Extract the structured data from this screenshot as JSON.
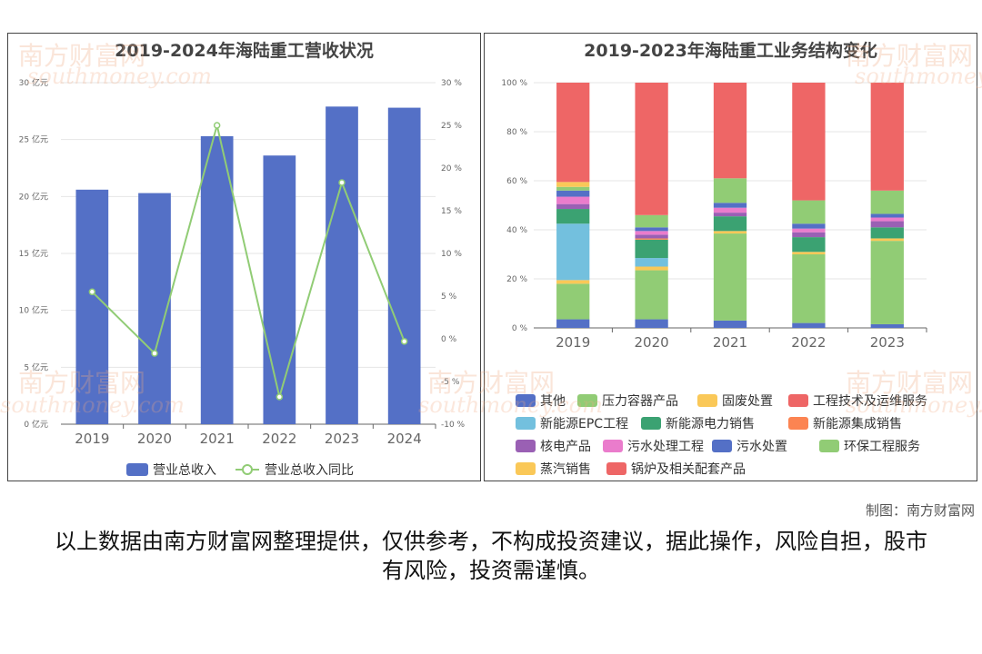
{
  "left_panel": {
    "title": "2019-2024年海陆重工营收状况"
  },
  "right_panel": {
    "title": "2019-2023年海陆重工业务结构变化"
  },
  "credit": "制图：南方财富网",
  "disclaimer": "以上数据由南方财富网整理提供，仅供参考，不构成投资建议，据此操作，风险自担，股市有风险，投资需谨慎。",
  "watermark": {
    "cn": "南方财富网",
    "en": "southmoney.com"
  },
  "chart_data": [
    {
      "type": "bar",
      "title": "2019-2024年海陆重工营收状况",
      "categories": [
        "2019",
        "2020",
        "2021",
        "2022",
        "2023",
        "2024"
      ],
      "series": [
        {
          "name": "营业总收入",
          "type": "bar",
          "axis": "left",
          "color": "#5470c6",
          "values": [
            20.6,
            20.3,
            25.3,
            23.6,
            27.9,
            27.8
          ]
        },
        {
          "name": "营业总收入同比",
          "type": "line",
          "axis": "right",
          "color": "#91cc75",
          "values": [
            5.5,
            -1.7,
            25.0,
            -6.8,
            18.3,
            -0.3
          ]
        }
      ],
      "y_left": {
        "min": 0,
        "max": 30,
        "step": 5,
        "suffix": " 亿元"
      },
      "y_right": {
        "min": -10,
        "max": 30,
        "step": 5,
        "suffix": " %"
      },
      "legend_position": "bottom",
      "grid": true
    },
    {
      "type": "bar",
      "stacked": true,
      "title": "2019-2023年海陆重工业务结构变化",
      "categories": [
        "2019",
        "2020",
        "2021",
        "2022",
        "2023"
      ],
      "y": {
        "min": 0,
        "max": 100,
        "step": 20,
        "suffix": " %"
      },
      "series": [
        {
          "name": "其他",
          "color": "#5470c6",
          "values": [
            3.5,
            3.5,
            3.0,
            2.0,
            1.5
          ]
        },
        {
          "name": "压力容器产品",
          "color": "#91cc75",
          "values": [
            14.5,
            20.0,
            35.5,
            28.0,
            34.0
          ]
        },
        {
          "name": "固废处置",
          "color": "#fac858",
          "values": [
            1.5,
            1.5,
            1.0,
            1.0,
            1.0
          ]
        },
        {
          "name": "工程技术及运维服务",
          "color": "#ee6666",
          "values": [
            0,
            0,
            0,
            0,
            0
          ]
        },
        {
          "name": "新能源EPC工程",
          "color": "#73c0de",
          "values": [
            23.0,
            3.5,
            0,
            0,
            0
          ]
        },
        {
          "name": "新能源电力销售",
          "color": "#3ba272",
          "values": [
            6.0,
            7.5,
            6.0,
            6.0,
            4.5
          ]
        },
        {
          "name": "新能源集成销售",
          "color": "#fc8452",
          "values": [
            0,
            0.5,
            0,
            0,
            0
          ]
        },
        {
          "name": "核电产品",
          "color": "#9a60b4",
          "values": [
            2.0,
            1.5,
            1.5,
            2.0,
            2.5
          ]
        },
        {
          "name": "污水处理工程",
          "color": "#ea7ccc",
          "values": [
            3.0,
            1.5,
            2.0,
            1.5,
            1.5
          ]
        },
        {
          "name": "污水处置",
          "color": "#5470c6",
          "values": [
            2.5,
            1.5,
            2.0,
            2.0,
            1.5
          ]
        },
        {
          "name": "环保工程服务",
          "color": "#91cc75",
          "values": [
            1.5,
            5.0,
            10.0,
            9.5,
            9.5
          ]
        },
        {
          "name": "蒸汽销售",
          "color": "#fac858",
          "values": [
            2.0,
            0,
            0,
            0,
            0
          ]
        },
        {
          "name": "锅炉及相关配套产品",
          "color": "#ee6666",
          "values": [
            40.5,
            54.0,
            39.0,
            48.0,
            44.0
          ]
        }
      ],
      "legend_position": "bottom",
      "grid": true
    }
  ]
}
